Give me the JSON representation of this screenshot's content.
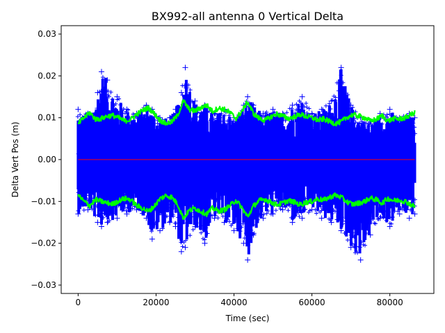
{
  "chart_data": {
    "type": "scatter",
    "title": "BX992-all antenna 0 Vertical Delta",
    "xlabel": "Time (sec)",
    "ylabel": "Delta Vert Pos (m)",
    "xlim": [
      -4350,
      91300
    ],
    "ylim": [
      -0.032,
      0.032
    ],
    "x_ticks": [
      0,
      20000,
      40000,
      60000,
      80000
    ],
    "x_tick_labels": [
      "0",
      "20000",
      "40000",
      "60000",
      "80000"
    ],
    "y_ticks": [
      -0.03,
      -0.02,
      -0.01,
      0.0,
      0.01,
      0.02,
      0.03
    ],
    "y_tick_labels": [
      "−0.03",
      "−0.02",
      "−0.01",
      "0.00",
      "0.01",
      "0.02",
      "0.03"
    ],
    "grid": false,
    "series": [
      {
        "name": "delta",
        "style": "scatter",
        "marker": "+",
        "color": "#0000ff",
        "description": "dense vertical delta samples every ~100 s from 0 to 86400 s; envelope (approx max/min) given",
        "x": [
          0,
          2500,
          5000,
          6000,
          7500,
          10000,
          12500,
          15000,
          17500,
          19000,
          21000,
          23500,
          25000,
          26500,
          27500,
          30000,
          32500,
          35000,
          37500,
          40000,
          42500,
          43500,
          45000,
          47500,
          50000,
          52500,
          55000,
          57500,
          60000,
          62500,
          65000,
          67500,
          70000,
          72500,
          75000,
          77500,
          80000,
          82500,
          85000,
          86400
        ],
        "upper": [
          0.012,
          0.011,
          0.016,
          0.021,
          0.019,
          0.015,
          0.012,
          0.011,
          0.013,
          0.012,
          0.01,
          0.01,
          0.012,
          0.016,
          0.022,
          0.014,
          0.013,
          0.011,
          0.012,
          0.01,
          0.013,
          0.015,
          0.013,
          0.011,
          0.012,
          0.011,
          0.013,
          0.015,
          0.011,
          0.012,
          0.014,
          0.022,
          0.013,
          0.01,
          0.009,
          0.011,
          0.012,
          0.01,
          0.011,
          0.01
        ],
        "lower": [
          -0.013,
          -0.012,
          -0.015,
          -0.016,
          -0.015,
          -0.014,
          -0.013,
          -0.012,
          -0.014,
          -0.019,
          -0.017,
          -0.015,
          -0.016,
          -0.022,
          -0.021,
          -0.016,
          -0.02,
          -0.014,
          -0.015,
          -0.017,
          -0.02,
          -0.024,
          -0.018,
          -0.014,
          -0.013,
          -0.012,
          -0.015,
          -0.014,
          -0.012,
          -0.014,
          -0.015,
          -0.017,
          -0.021,
          -0.024,
          -0.018,
          -0.014,
          -0.016,
          -0.013,
          -0.014,
          -0.013
        ]
      },
      {
        "name": "upper bound",
        "style": "line",
        "color": "#00ff00",
        "x": [
          0,
          1500,
          3000,
          4500,
          6000,
          7500,
          9000,
          10500,
          12000,
          13500,
          15000,
          16500,
          18000,
          19500,
          21000,
          22500,
          24000,
          25500,
          27000,
          28500,
          30000,
          31500,
          33000,
          34500,
          36000,
          37500,
          39000,
          40500,
          42000,
          43500,
          45000,
          46500,
          48000,
          49500,
          51000,
          52500,
          54000,
          55500,
          57000,
          58500,
          60000,
          61500,
          63000,
          64500,
          66000,
          67500,
          69000,
          70500,
          72000,
          73500,
          75000,
          76500,
          78000,
          79500,
          81000,
          82500,
          84000,
          85500,
          86400
        ],
        "values": [
          0.0085,
          0.01,
          0.0112,
          0.0096,
          0.0098,
          0.0104,
          0.0105,
          0.0099,
          0.0092,
          0.0096,
          0.0108,
          0.0117,
          0.0124,
          0.011,
          0.0094,
          0.0086,
          0.009,
          0.0105,
          0.014,
          0.012,
          0.0116,
          0.0124,
          0.013,
          0.0115,
          0.0123,
          0.012,
          0.0112,
          0.0098,
          0.0115,
          0.0138,
          0.011,
          0.0098,
          0.0094,
          0.0102,
          0.0109,
          0.0104,
          0.0098,
          0.0102,
          0.0108,
          0.0103,
          0.01,
          0.0094,
          0.0097,
          0.0091,
          0.0086,
          0.009,
          0.0101,
          0.0107,
          0.0104,
          0.01,
          0.0092,
          0.0096,
          0.0105,
          0.0092,
          0.0098,
          0.0097,
          0.01,
          0.0108,
          0.0112
        ]
      },
      {
        "name": "lower bound",
        "style": "line",
        "color": "#00ff00",
        "x": [
          0,
          1500,
          3000,
          4500,
          6000,
          7500,
          9000,
          10500,
          12000,
          13500,
          15000,
          16500,
          18000,
          19500,
          21000,
          22500,
          24000,
          25500,
          27000,
          28500,
          30000,
          31500,
          33000,
          34500,
          36000,
          37500,
          39000,
          40500,
          42000,
          43500,
          45000,
          46500,
          48000,
          49500,
          51000,
          52500,
          54000,
          55500,
          57000,
          58500,
          60000,
          61500,
          63000,
          64500,
          66000,
          67500,
          69000,
          70500,
          72000,
          73500,
          75000,
          76500,
          78000,
          79500,
          81000,
          82500,
          84000,
          85500,
          86400
        ],
        "values": [
          -0.0085,
          -0.01,
          -0.011,
          -0.0096,
          -0.01,
          -0.0104,
          -0.0106,
          -0.0098,
          -0.0093,
          -0.0096,
          -0.011,
          -0.0116,
          -0.0124,
          -0.0112,
          -0.0094,
          -0.0086,
          -0.009,
          -0.0106,
          -0.014,
          -0.0122,
          -0.0116,
          -0.0124,
          -0.013,
          -0.0116,
          -0.0123,
          -0.012,
          -0.011,
          -0.0097,
          -0.0115,
          -0.0137,
          -0.0111,
          -0.0098,
          -0.0095,
          -0.0102,
          -0.0108,
          -0.0104,
          -0.0098,
          -0.0102,
          -0.0108,
          -0.0102,
          -0.01,
          -0.0094,
          -0.0097,
          -0.009,
          -0.0085,
          -0.009,
          -0.0101,
          -0.0107,
          -0.0104,
          -0.01,
          -0.0092,
          -0.0096,
          -0.0104,
          -0.0093,
          -0.0098,
          -0.0097,
          -0.01,
          -0.0108,
          -0.0112
        ]
      },
      {
        "name": "mean",
        "style": "line",
        "color": "#ff0000",
        "x": [
          0,
          86400
        ],
        "values": [
          0.0,
          0.0
        ]
      }
    ]
  }
}
